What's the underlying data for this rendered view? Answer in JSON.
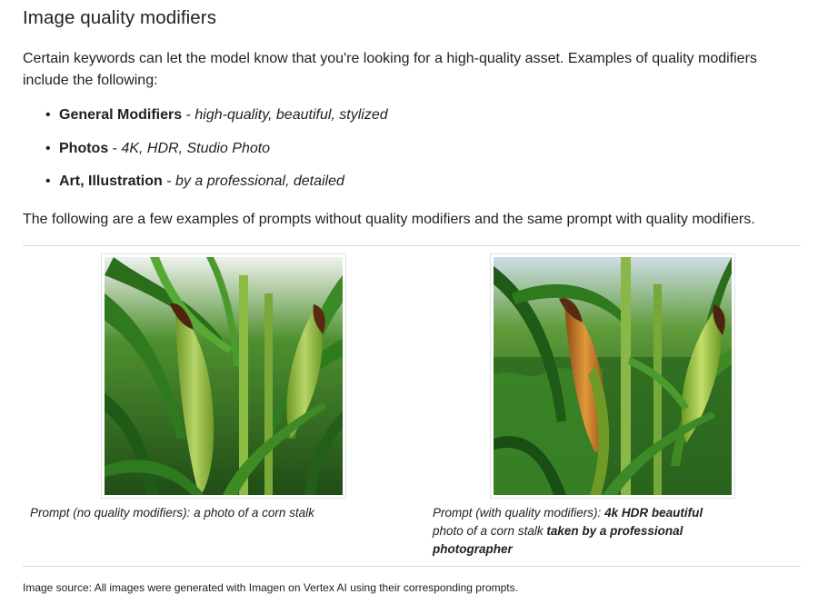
{
  "heading": "Image quality modifiers",
  "intro": "Certain keywords can let the model know that you're looking for a high-quality asset. Examples of quality modifiers include the following:",
  "modifiers": [
    {
      "term": "General Modifiers",
      "separator": " - ",
      "values": "high-quality, beautiful, stylized"
    },
    {
      "term": "Photos",
      "separator": " - ",
      "values": "4K, HDR, Studio Photo"
    },
    {
      "term": "Art, Illustration",
      "separator": " - ",
      "values": "by a professional, detailed"
    }
  ],
  "examples_intro": "The following are a few examples of prompts without quality modifiers and the same prompt with quality modifiers.",
  "examples": [
    {
      "image_alt": "corn stalk photo without quality modifiers",
      "caption_prefix": "Prompt (no quality modifiers): ",
      "caption_text": "a photo of a corn stalk"
    },
    {
      "image_alt": "corn stalk photo with quality modifiers",
      "caption_prefix": "Prompt (with quality modifiers): ",
      "caption_bold_1": "4k HDR beautiful",
      "caption_text": " photo of a corn stalk ",
      "caption_bold_2": "taken by a professional photographer"
    }
  ],
  "source_note": "Image source: All images were generated with Imagen on Vertex AI using their corresponding prompts.",
  "colors": {
    "text": "#202124",
    "divider": "#dadce0",
    "leaf_dark": "#1f5a17",
    "leaf_mid": "#3f8a25",
    "leaf_light": "#7cc04a",
    "husk": "#9cc23c",
    "silk": "#5a2a12",
    "kernel": "#d8862a",
    "sky": "#cfdde6"
  }
}
